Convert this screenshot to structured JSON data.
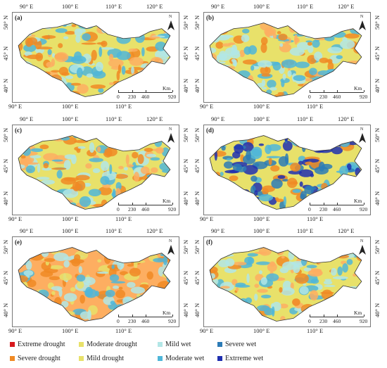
{
  "longitudes": [
    "90° E",
    "100° E",
    "110° E",
    "120° E"
  ],
  "latitudes": [
    "50° N",
    "45° N",
    "40° N"
  ],
  "scale": {
    "unit": "Km",
    "ticks": [
      "0",
      "230",
      "460",
      "920"
    ]
  },
  "north_symbol": "N",
  "panels": [
    {
      "label": "(a)"
    },
    {
      "label": "(b)"
    },
    {
      "label": "(c)"
    },
    {
      "label": "(d)"
    },
    {
      "label": "(e)"
    },
    {
      "label": "(f)"
    }
  ],
  "legend": [
    {
      "label": "Extreme drought",
      "color": "#d7191c"
    },
    {
      "label": "Moderate drought",
      "color": "#fdae61"
    },
    {
      "label": "Mild wet",
      "color": "#b2e6e6"
    },
    {
      "label": "Severe wet",
      "color": "#2c7bb6"
    },
    {
      "label": "Severe drought",
      "color": "#f08a24"
    },
    {
      "label": "Mild drought",
      "color": "#e8e16a"
    },
    {
      "label": "Moderate wet",
      "color": "#4fb6d9"
    },
    {
      "label": "Extrreme wet",
      "color": "#1f2fb0"
    }
  ]
}
